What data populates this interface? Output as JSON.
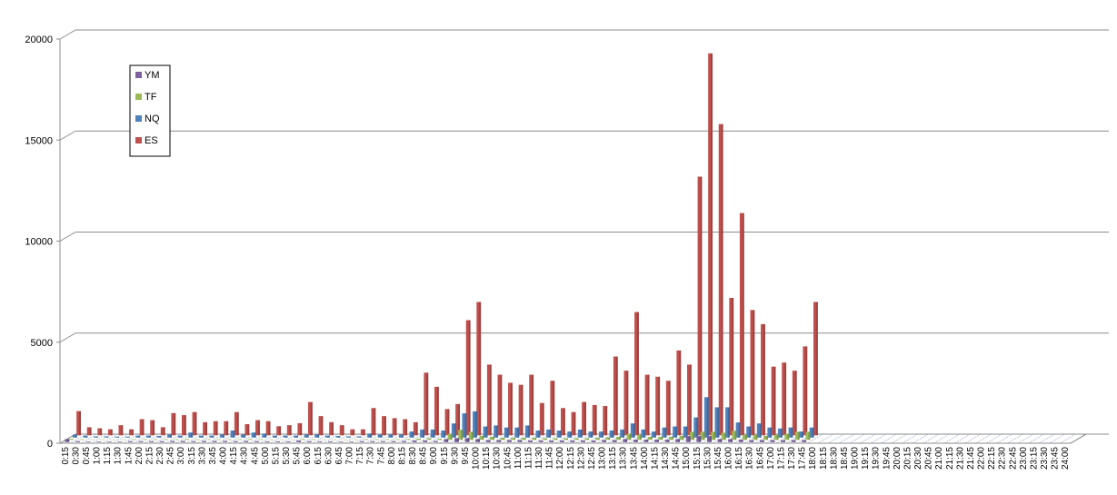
{
  "chart_data": {
    "type": "bar",
    "title": "",
    "xlabel": "",
    "ylabel": "",
    "ylim": [
      0,
      20000
    ],
    "yticks": [
      0,
      5000,
      10000,
      15000,
      20000
    ],
    "grid": true,
    "legend_position": "top-left",
    "categories": [
      "0:15",
      "0:30",
      "0:45",
      "1:00",
      "1:15",
      "1:30",
      "1:45",
      "2:00",
      "2:15",
      "2:30",
      "2:45",
      "3:00",
      "3:15",
      "3:30",
      "3:45",
      "4:00",
      "4:15",
      "4:30",
      "4:45",
      "5:00",
      "5:15",
      "5:30",
      "5:45",
      "6:00",
      "6:15",
      "6:30",
      "6:45",
      "7:00",
      "7:15",
      "7:30",
      "7:45",
      "8:00",
      "8:15",
      "8:30",
      "8:45",
      "9:00",
      "9:15",
      "9:30",
      "9:45",
      "10:00",
      "10:15",
      "10:30",
      "10:45",
      "11:00",
      "11:15",
      "11:30",
      "11:45",
      "12:00",
      "12:15",
      "12:30",
      "12:45",
      "13:00",
      "13:15",
      "13:30",
      "13:45",
      "14:00",
      "14:15",
      "14:30",
      "14:45",
      "15:00",
      "15:15",
      "15:30",
      "15:45",
      "16:00",
      "16:15",
      "16:30",
      "16:45",
      "17:00",
      "17:15",
      "17:30",
      "17:45",
      "18:00",
      "18:15",
      "18:30",
      "18:45",
      "19:00",
      "19:15",
      "19:30",
      "19:45",
      "20:00",
      "20:15",
      "20:30",
      "20:45",
      "21:00",
      "21:15",
      "21:30",
      "21:45",
      "22:00",
      "22:15",
      "22:30",
      "22:45",
      "23:00",
      "23:15",
      "23:30",
      "23:45",
      "24:00"
    ],
    "series": [
      {
        "name": "YM",
        "color": "#7d60a0",
        "values": [
          150,
          50,
          30,
          30,
          30,
          30,
          50,
          50,
          50,
          50,
          60,
          60,
          50,
          60,
          60,
          60,
          50,
          60,
          50,
          40,
          40,
          40,
          80,
          50,
          40,
          40,
          30,
          30,
          50,
          50,
          50,
          50,
          60,
          80,
          80,
          60,
          150,
          200,
          200,
          150,
          100,
          100,
          100,
          100,
          80,
          80,
          80,
          80,
          80,
          80,
          80,
          100,
          100,
          150,
          120,
          120,
          120,
          120,
          150,
          300,
          300,
          300,
          150,
          150,
          120,
          100,
          100,
          100,
          100,
          100,
          100,
          0,
          0,
          0,
          0,
          0,
          0,
          0,
          0,
          0,
          0,
          0,
          0,
          0,
          0,
          0,
          0,
          0,
          0,
          0,
          0,
          0,
          0,
          0,
          0,
          0
        ]
      },
      {
        "name": "TF",
        "color": "#9bbb59",
        "values": [
          50,
          30,
          20,
          20,
          20,
          20,
          30,
          30,
          30,
          30,
          30,
          40,
          30,
          30,
          30,
          30,
          30,
          40,
          30,
          20,
          20,
          20,
          40,
          30,
          20,
          20,
          20,
          20,
          30,
          30,
          30,
          30,
          40,
          60,
          80,
          60,
          300,
          500,
          400,
          200,
          150,
          100,
          100,
          100,
          100,
          80,
          80,
          80,
          80,
          80,
          100,
          120,
          150,
          300,
          250,
          150,
          150,
          150,
          200,
          400,
          400,
          400,
          350,
          450,
          250,
          250,
          200,
          250,
          300,
          400,
          400,
          0,
          0,
          0,
          0,
          0,
          0,
          0,
          0,
          0,
          0,
          0,
          0,
          0,
          0,
          0,
          0,
          0,
          0,
          0,
          0,
          0,
          0,
          0,
          0,
          0
        ]
      },
      {
        "name": "NQ",
        "color": "#4f81bd",
        "values": [
          150,
          100,
          60,
          60,
          50,
          50,
          100,
          100,
          80,
          150,
          100,
          250,
          100,
          100,
          150,
          350,
          150,
          250,
          200,
          100,
          100,
          100,
          150,
          150,
          100,
          80,
          60,
          60,
          200,
          150,
          150,
          150,
          300,
          400,
          400,
          350,
          700,
          1200,
          1300,
          550,
          600,
          500,
          500,
          600,
          350,
          400,
          350,
          300,
          400,
          300,
          300,
          350,
          400,
          700,
          400,
          300,
          500,
          550,
          550,
          1000,
          2000,
          1500,
          1500,
          750,
          550,
          700,
          500,
          450,
          500,
          300,
          500,
          0,
          0,
          0,
          0,
          0,
          0,
          0,
          0,
          0,
          0,
          0,
          0,
          0,
          0,
          0,
          0,
          0,
          0,
          0,
          0,
          0,
          0,
          0,
          0,
          0
        ]
      },
      {
        "name": "ES",
        "color": "#c0504d",
        "values": [
          1200,
          400,
          350,
          300,
          500,
          300,
          800,
          750,
          400,
          1100,
          1000,
          1150,
          650,
          700,
          700,
          1150,
          550,
          750,
          700,
          450,
          500,
          600,
          1650,
          950,
          650,
          500,
          300,
          300,
          1350,
          950,
          850,
          800,
          650,
          3100,
          2400,
          1300,
          1550,
          5700,
          6600,
          3500,
          3000,
          2600,
          2500,
          3000,
          1600,
          2700,
          1350,
          1150,
          1650,
          1500,
          1450,
          3900,
          3200,
          6100,
          3000,
          2900,
          2700,
          4200,
          3500,
          12800,
          18900,
          15400,
          6800,
          11000,
          6200,
          5500,
          3400,
          3600,
          3200,
          4400,
          6600,
          0,
          0,
          0,
          0,
          0,
          0,
          0,
          0,
          0,
          0,
          0,
          0,
          0,
          0,
          0,
          0,
          0,
          0,
          0,
          0,
          0,
          0,
          0,
          0,
          0
        ]
      }
    ]
  }
}
